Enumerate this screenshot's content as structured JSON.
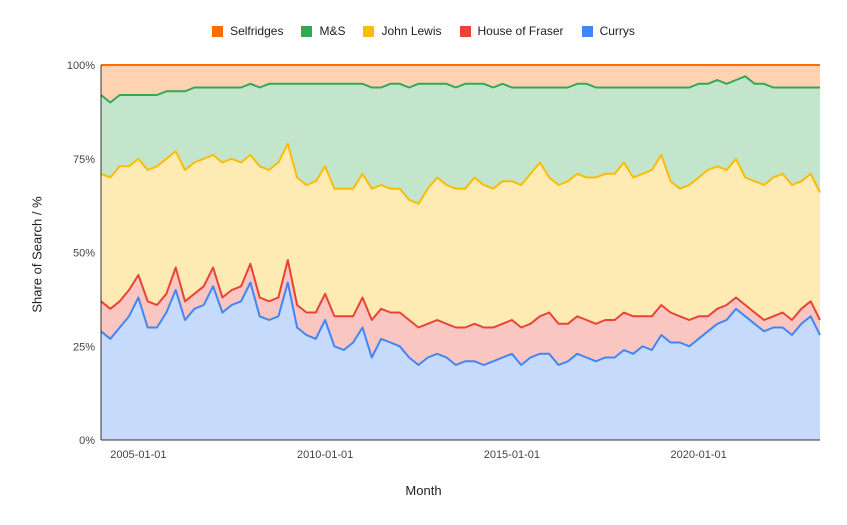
{
  "chart_data": {
    "type": "area",
    "stacked": "percent",
    "xlabel": "Month",
    "ylabel": "Share of Search / %",
    "ylim": [
      0,
      100
    ],
    "y_ticks": [
      "0%",
      "25%",
      "50%",
      "75%",
      "100%"
    ],
    "x_ticks": [
      "2005-01-01",
      "2010-01-01",
      "2015-01-01",
      "2020-01-01"
    ],
    "legend_position": "top",
    "grid": false,
    "x": [
      "2004-01",
      "2004-04",
      "2004-07",
      "2004-10",
      "2005-01",
      "2005-04",
      "2005-07",
      "2005-10",
      "2006-01",
      "2006-04",
      "2006-07",
      "2006-10",
      "2007-01",
      "2007-04",
      "2007-07",
      "2007-10",
      "2008-01",
      "2008-04",
      "2008-07",
      "2008-10",
      "2009-01",
      "2009-04",
      "2009-07",
      "2009-10",
      "2010-01",
      "2010-04",
      "2010-07",
      "2010-10",
      "2011-01",
      "2011-04",
      "2011-07",
      "2011-10",
      "2012-01",
      "2012-04",
      "2012-07",
      "2012-10",
      "2013-01",
      "2013-04",
      "2013-07",
      "2013-10",
      "2014-01",
      "2014-04",
      "2014-07",
      "2014-10",
      "2015-01",
      "2015-04",
      "2015-07",
      "2015-10",
      "2016-01",
      "2016-04",
      "2016-07",
      "2016-10",
      "2017-01",
      "2017-04",
      "2017-07",
      "2017-10",
      "2018-01",
      "2018-04",
      "2018-07",
      "2018-10",
      "2019-01",
      "2019-04",
      "2019-07",
      "2019-10",
      "2020-01",
      "2020-04",
      "2020-07",
      "2020-10",
      "2021-01",
      "2021-04",
      "2021-07",
      "2021-10",
      "2022-01",
      "2022-04",
      "2022-07",
      "2022-10",
      "2023-01",
      "2023-04"
    ],
    "series": [
      {
        "name": "Currys",
        "color": "#4285f4",
        "values": [
          29,
          27,
          30,
          33,
          38,
          30,
          30,
          34,
          40,
          32,
          35,
          36,
          41,
          34,
          36,
          37,
          42,
          33,
          32,
          33,
          42,
          30,
          28,
          27,
          32,
          25,
          24,
          26,
          30,
          22,
          27,
          26,
          25,
          22,
          20,
          22,
          23,
          22,
          20,
          21,
          21,
          20,
          21,
          22,
          23,
          20,
          22,
          23,
          23,
          20,
          21,
          23,
          22,
          21,
          22,
          22,
          24,
          23,
          25,
          24,
          28,
          26,
          26,
          25,
          27,
          29,
          31,
          32,
          35,
          33,
          31,
          29,
          30,
          30,
          28,
          31,
          33,
          28
        ]
      },
      {
        "name": "House of Fraser",
        "color": "#ea4335",
        "values": [
          8,
          8,
          7,
          7,
          6,
          7,
          6,
          5,
          6,
          5,
          4,
          5,
          5,
          4,
          4,
          4,
          5,
          5,
          5,
          5,
          6,
          6,
          6,
          7,
          7,
          8,
          9,
          7,
          8,
          10,
          8,
          8,
          9,
          10,
          10,
          9,
          9,
          9,
          10,
          9,
          10,
          10,
          9,
          9,
          9,
          10,
          9,
          10,
          11,
          11,
          10,
          10,
          10,
          10,
          10,
          10,
          10,
          10,
          8,
          9,
          8,
          8,
          7,
          7,
          6,
          4,
          4,
          4,
          3,
          3,
          3,
          3,
          3,
          4,
          4,
          4,
          4,
          4
        ]
      },
      {
        "name": "John Lewis",
        "color": "#fbbc04",
        "values": [
          34,
          35,
          36,
          33,
          31,
          35,
          37,
          36,
          31,
          35,
          35,
          34,
          30,
          36,
          35,
          33,
          29,
          35,
          35,
          36,
          31,
          34,
          34,
          35,
          34,
          34,
          34,
          34,
          33,
          35,
          33,
          33,
          33,
          32,
          33,
          36,
          38,
          37,
          37,
          37,
          39,
          38,
          37,
          38,
          37,
          38,
          40,
          41,
          36,
          37,
          38,
          38,
          38,
          39,
          39,
          39,
          40,
          37,
          38,
          39,
          40,
          35,
          34,
          36,
          37,
          39,
          38,
          36,
          37,
          34,
          35,
          36,
          37,
          37,
          36,
          34,
          34,
          34
        ]
      },
      {
        "name": "M&S",
        "color": "#34a853",
        "values": [
          21,
          20,
          19,
          19,
          17,
          20,
          19,
          18,
          16,
          21,
          20,
          19,
          18,
          20,
          19,
          20,
          19,
          21,
          23,
          21,
          16,
          25,
          27,
          26,
          22,
          28,
          28,
          28,
          24,
          27,
          26,
          28,
          28,
          30,
          32,
          28,
          25,
          27,
          27,
          28,
          25,
          27,
          27,
          26,
          25,
          26,
          23,
          20,
          24,
          26,
          25,
          24,
          25,
          24,
          23,
          23,
          20,
          24,
          23,
          22,
          18,
          25,
          27,
          26,
          25,
          23,
          23,
          23,
          21,
          27,
          26,
          27,
          24,
          23,
          26,
          25,
          23,
          28
        ]
      },
      {
        "name": "Selfridges",
        "color": "#ff6d01",
        "values": [
          8,
          10,
          8,
          8,
          8,
          8,
          8,
          7,
          7,
          7,
          6,
          6,
          6,
          6,
          6,
          6,
          5,
          6,
          5,
          5,
          5,
          5,
          5,
          5,
          5,
          5,
          5,
          5,
          5,
          6,
          6,
          5,
          5,
          6,
          5,
          5,
          5,
          5,
          6,
          5,
          5,
          5,
          6,
          5,
          6,
          6,
          6,
          6,
          6,
          6,
          6,
          5,
          5,
          6,
          6,
          6,
          6,
          6,
          6,
          6,
          6,
          6,
          6,
          6,
          5,
          5,
          4,
          5,
          4,
          3,
          5,
          5,
          6,
          6,
          6,
          6,
          6,
          6
        ]
      }
    ]
  },
  "legend_order": [
    "Selfridges",
    "M&S",
    "John Lewis",
    "House of Fraser",
    "Currys"
  ]
}
